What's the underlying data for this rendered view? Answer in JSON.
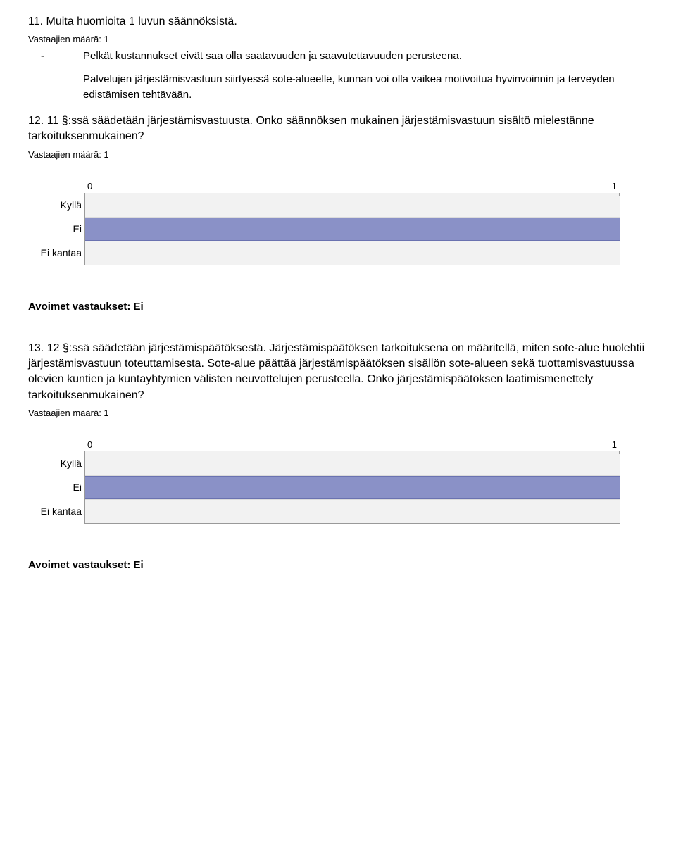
{
  "q11": {
    "title": "11. Muita huomioita 1 luvun säännöksistä.",
    "subtitle": "Vastaajien määrä: 1",
    "item1": "Pelkät kustannukset eivät saa olla saatavuuden ja saavutettavuuden perusteena.",
    "item2": "Palvelujen järjestämisvastuun siirtyessä sote-alueelle, kunnan voi olla vaikea motivoitua hyvinvoinnin ja terveyden edistämisen tehtävään.",
    "dash": "-"
  },
  "q12": {
    "title": "12. 11 §:ssä säädetään järjestämisvastuusta. Onko säännöksen mukainen järjestämisvastuun sisältö mielestänne tarkoituksenmukainen?",
    "subtitle": "Vastaajien määrä: 1",
    "axis_min": "0",
    "axis_max": "1",
    "categories": {
      "a": "Kyllä",
      "b": "Ei",
      "c": "Ei kantaa"
    },
    "bars_pct": {
      "a": 0,
      "b": 100,
      "c": 0
    },
    "bar_color": "#8a91c7",
    "track_color": "#f2f2f2",
    "open_label": "Avoimet vastaukset: Ei"
  },
  "q13": {
    "title": "13. 12 §:ssä säädetään järjestämispäätöksestä. Järjestämispäätöksen tarkoituksena on määritellä, miten sote-alue huolehtii järjestämisvastuun toteuttamisesta. Sote-alue päättää järjestämispäätöksen sisällön sote-alueen sekä tuottamisvastuussa olevien kuntien ja kuntayhtymien välisten neuvottelujen perusteella. Onko järjestämispäätöksen laatimismenettely tarkoituksenmukainen?",
    "subtitle": "Vastaajien määrä: 1",
    "axis_min": "0",
    "axis_max": "1",
    "categories": {
      "a": "Kyllä",
      "b": "Ei",
      "c": "Ei kantaa"
    },
    "bars_pct": {
      "a": 0,
      "b": 100,
      "c": 0
    },
    "open_label": "Avoimet vastaukset: Ei"
  }
}
